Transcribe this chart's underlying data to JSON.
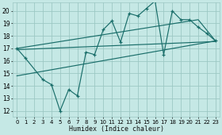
{
  "xlabel": "Humidex (Indice chaleur)",
  "bg_color": "#c5e8e5",
  "grid_color": "#9dc8c4",
  "line_color": "#1a6e6a",
  "xlim": [
    -0.5,
    23.5
  ],
  "ylim": [
    11.5,
    20.7
  ],
  "xticks": [
    0,
    1,
    2,
    3,
    4,
    5,
    6,
    7,
    8,
    9,
    10,
    11,
    12,
    13,
    14,
    15,
    16,
    17,
    18,
    19,
    20,
    21,
    22,
    23
  ],
  "yticks": [
    12,
    13,
    14,
    15,
    16,
    17,
    18,
    19,
    20
  ],
  "main_x": [
    0,
    1,
    3,
    4,
    5,
    6,
    7,
    8,
    9,
    10,
    11,
    12,
    13,
    14,
    15,
    16,
    17,
    18,
    19,
    20,
    21,
    22,
    23
  ],
  "main_y": [
    17.0,
    16.2,
    14.5,
    14.1,
    12.0,
    13.7,
    13.2,
    16.7,
    16.5,
    18.5,
    19.2,
    17.5,
    19.8,
    19.6,
    20.2,
    20.8,
    16.5,
    20.0,
    19.3,
    19.3,
    18.7,
    18.2,
    17.6
  ],
  "upper_line_x": [
    0,
    21,
    23
  ],
  "upper_line_y": [
    17.0,
    19.3,
    17.6
  ],
  "lower_line_x": [
    0,
    23
  ],
  "lower_line_y": [
    14.8,
    17.6
  ],
  "mid_line_x": [
    0,
    23
  ],
  "mid_line_y": [
    16.9,
    17.55
  ]
}
